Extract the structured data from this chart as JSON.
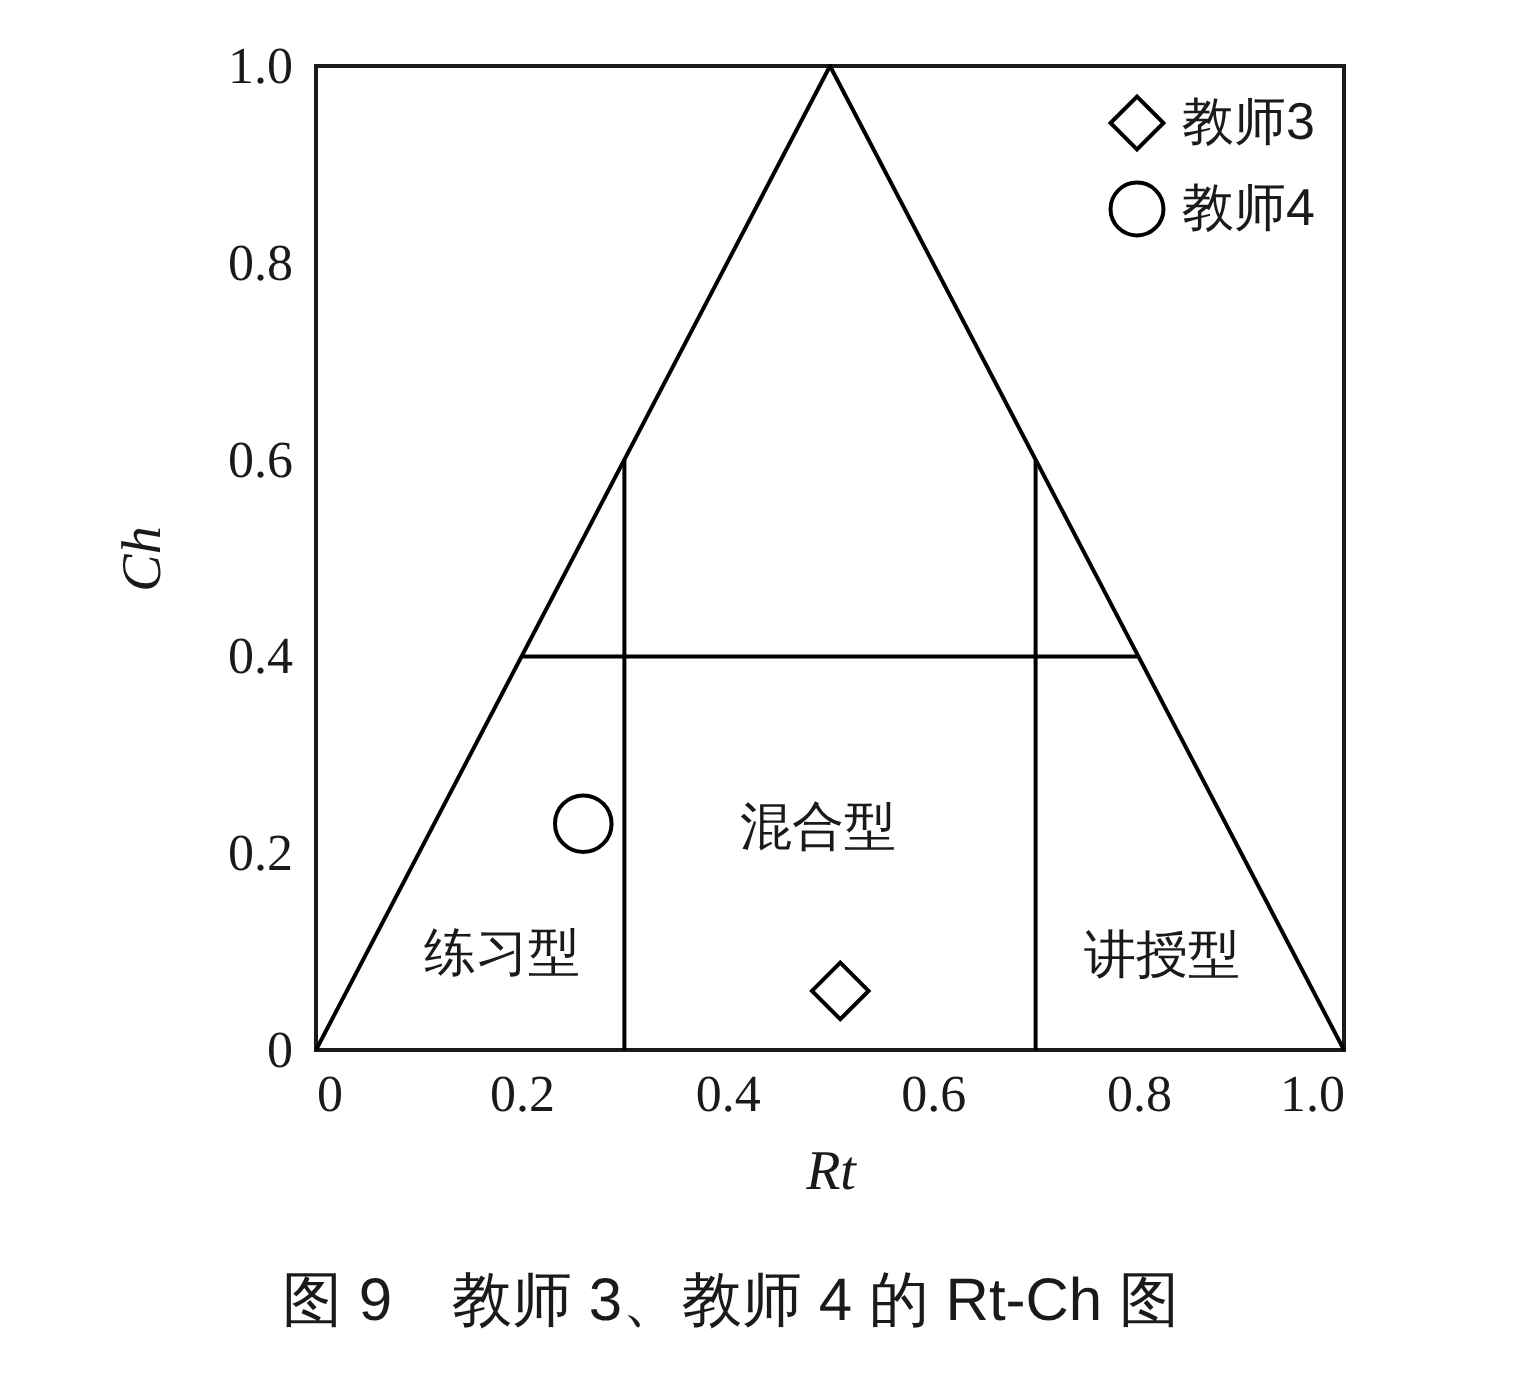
{
  "chart_data": {
    "type": "scatter",
    "xlabel": "Rt",
    "ylabel": "Ch",
    "xlim": [
      0,
      1
    ],
    "ylim": [
      0,
      1
    ],
    "xticks": [
      0,
      0.2,
      0.4,
      0.6,
      0.8,
      {
        "value": 1,
        "label": "1.0"
      }
    ],
    "yticks": [
      0,
      0.2,
      0.4,
      0.6,
      0.8,
      {
        "value": 1,
        "label": "1.0"
      }
    ],
    "grid": false,
    "legend": "top right",
    "series": [
      {
        "type": "line",
        "color": "#000000",
        "x": [
          0,
          0.5,
          1
        ],
        "values": [
          0,
          1,
          0
        ]
      },
      {
        "type": "line",
        "color": "#000000",
        "x": [
          0.2,
          0.8
        ],
        "values": [
          0.4,
          0.4
        ]
      },
      {
        "type": "line",
        "color": "#000000",
        "x": [
          0.3,
          0.3
        ],
        "values": [
          0,
          0.6
        ]
      },
      {
        "type": "line",
        "color": "#000000",
        "x": [
          0.7,
          0.7
        ],
        "values": [
          0,
          0.6
        ]
      },
      {
        "name": "教师3",
        "color": "#000000",
        "marker": "diamond",
        "x": [
          0.51
        ],
        "values": [
          0.06
        ]
      },
      {
        "name": "教师4",
        "color": "#000000",
        "marker": "circle",
        "x": [
          0.26
        ],
        "values": [
          0.23
        ]
      }
    ],
    "annotations": [
      "练习型",
      "混合型",
      "讲授型",
      "图 9　教师 3、教师 4 的 Rt-Ch 图"
    ]
  }
}
